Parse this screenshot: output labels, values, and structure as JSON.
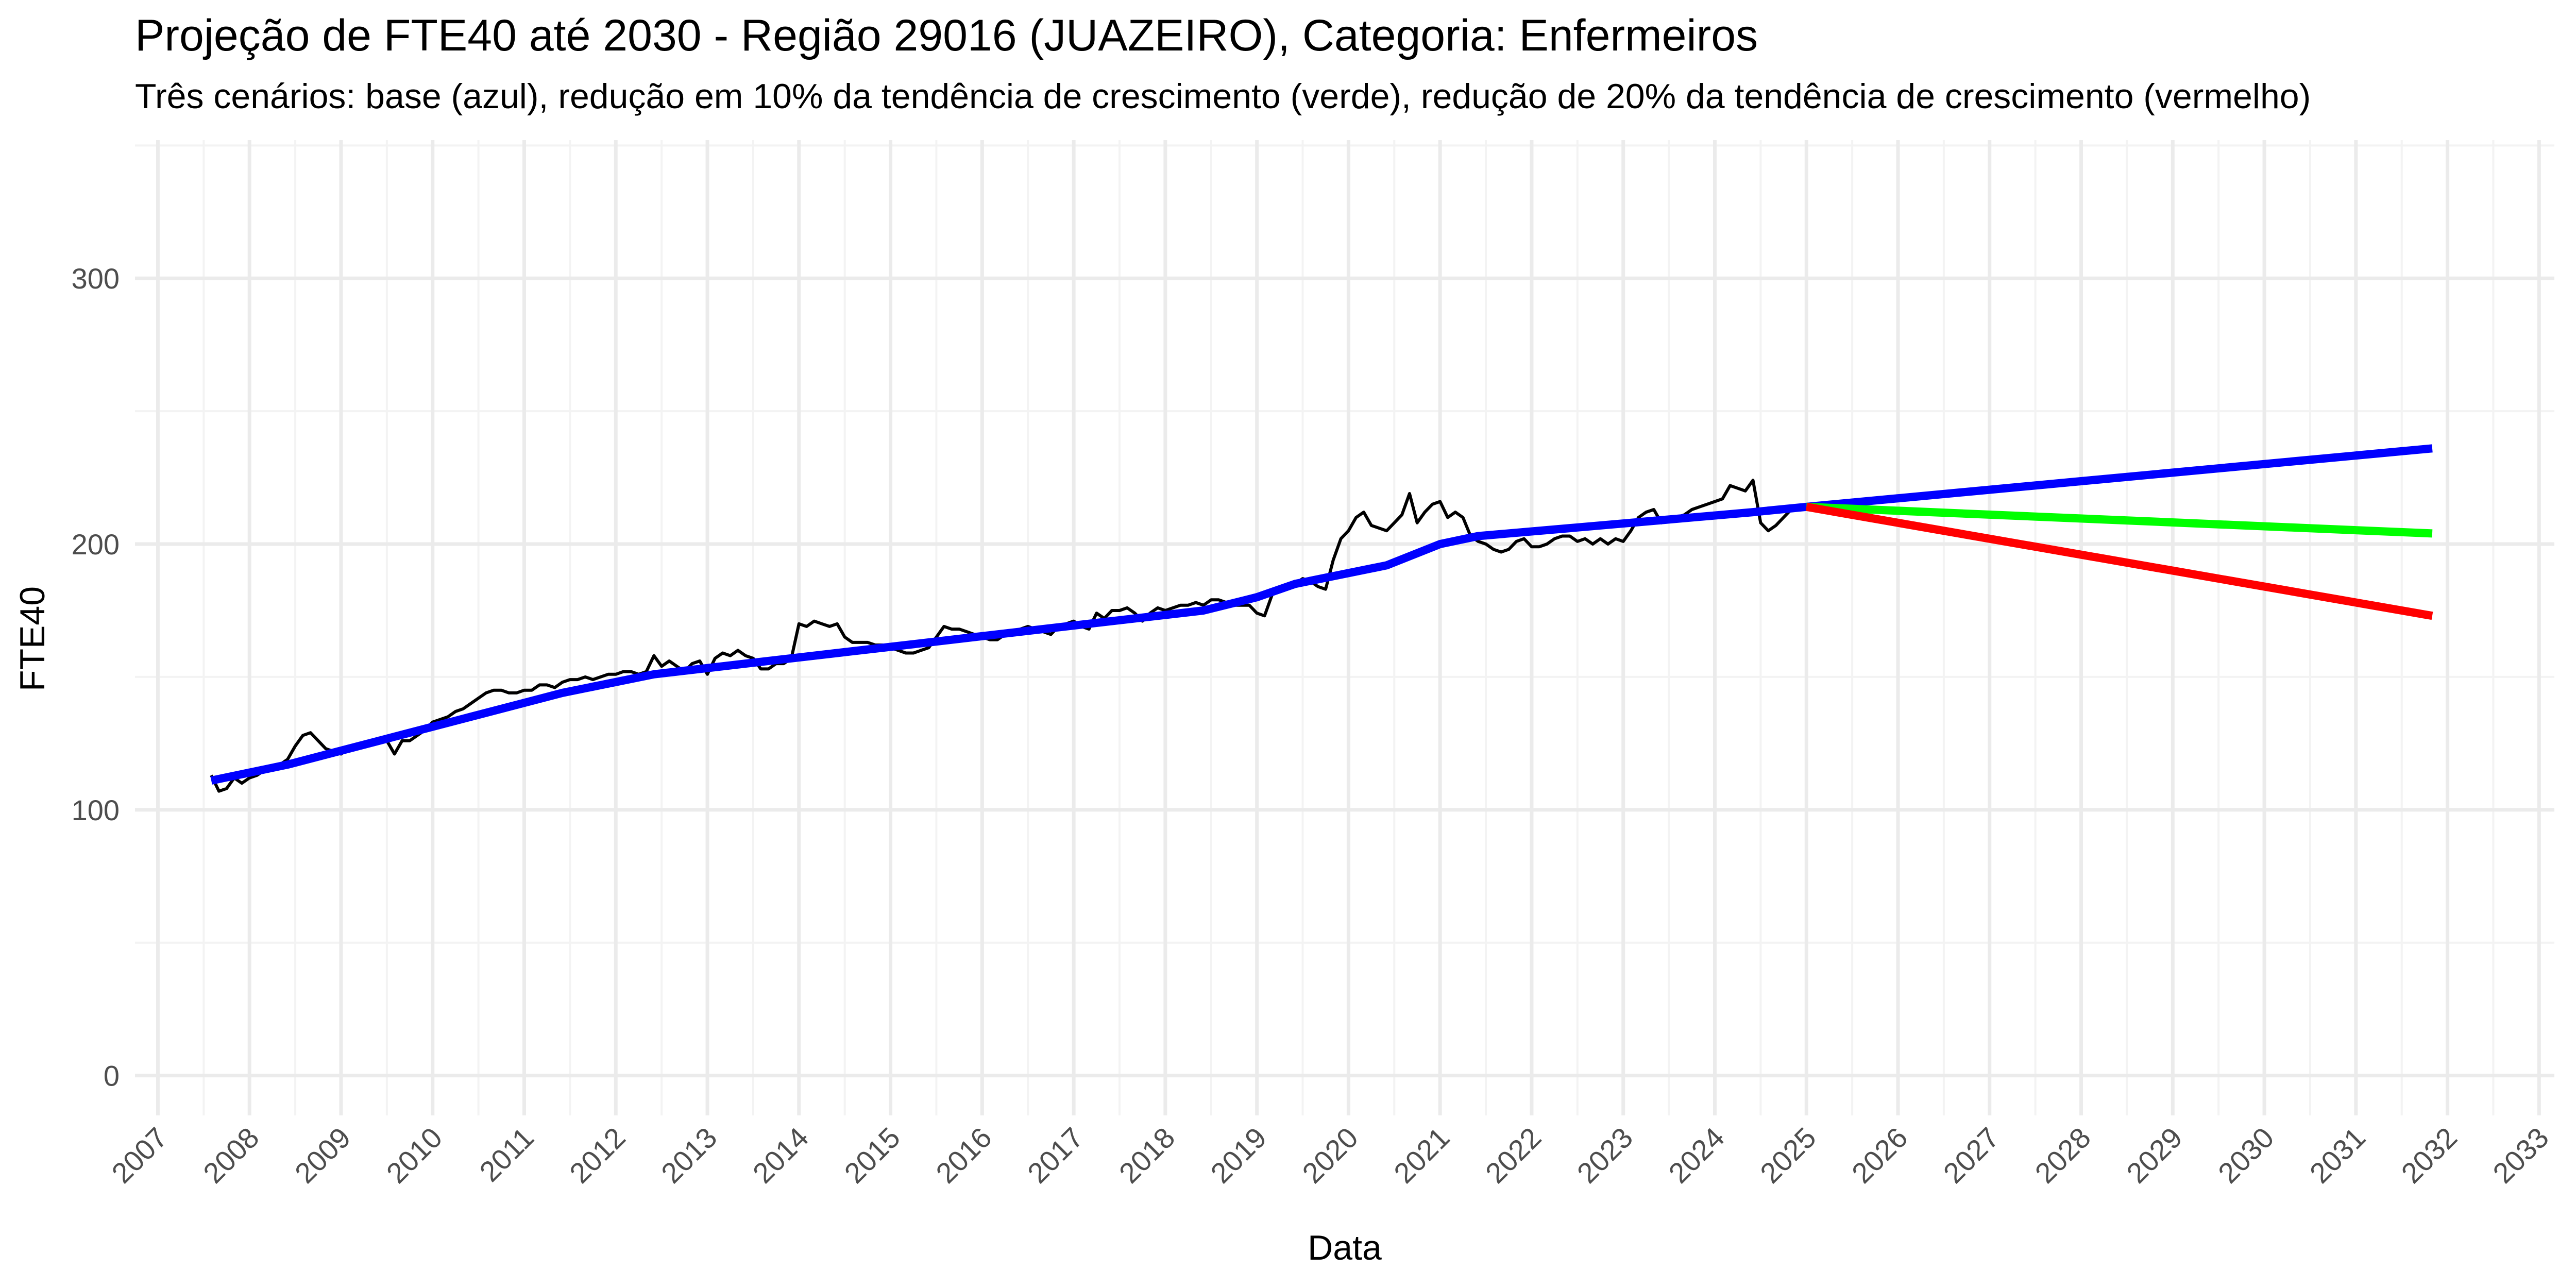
{
  "chart_data": {
    "type": "line",
    "title": "Projeção de FTE40 até 2030 - Região 29016 (JUAZEIRO), Categoria: Enfermeiros",
    "subtitle": "Três cenários: base (azul), redução em 10% da tendência de crescimento (verde), redução de 20% da tendência de crescimento (vermelho)",
    "xlabel": "Data",
    "ylabel": "FTE40",
    "x_ticks": [
      "2007",
      "2008",
      "2009",
      "2010",
      "2011",
      "2012",
      "2013",
      "2014",
      "2015",
      "2016",
      "2017",
      "2018",
      "2019",
      "2020",
      "2021",
      "2022",
      "2023",
      "2024",
      "2025",
      "2026",
      "2027",
      "2028",
      "2029",
      "2030",
      "2031",
      "2032",
      "2033"
    ],
    "y_ticks": [
      "0",
      "100",
      "200",
      "300"
    ],
    "xlim": [
      "2006-10-01",
      "2033-03-01"
    ],
    "ylim": [
      -15,
      352
    ],
    "grid": true,
    "legend": "none",
    "series": [
      {
        "color": "#000000",
        "points": [
          [
            "2007-08-01",
            113
          ],
          [
            "2007-09-01",
            107
          ],
          [
            "2007-10-01",
            108
          ],
          [
            "2007-11-01",
            112
          ],
          [
            "2007-12-01",
            110
          ],
          [
            "2008-01-01",
            112
          ],
          [
            "2008-02-01",
            113
          ],
          [
            "2008-03-01",
            115
          ],
          [
            "2008-04-01",
            116
          ],
          [
            "2008-05-01",
            117
          ],
          [
            "2008-06-01",
            119
          ],
          [
            "2008-07-01",
            124
          ],
          [
            "2008-08-01",
            128
          ],
          [
            "2008-09-01",
            129
          ],
          [
            "2008-10-01",
            126
          ],
          [
            "2008-11-01",
            123
          ],
          [
            "2008-12-01",
            122
          ],
          [
            "2009-01-01",
            121
          ],
          [
            "2009-02-01",
            123
          ],
          [
            "2009-03-01",
            124
          ],
          [
            "2009-04-01",
            125
          ],
          [
            "2009-05-01",
            126
          ],
          [
            "2009-06-01",
            127
          ],
          [
            "2009-07-01",
            126
          ],
          [
            "2009-08-01",
            121
          ],
          [
            "2009-09-01",
            126
          ],
          [
            "2009-10-01",
            126
          ],
          [
            "2009-11-01",
            128
          ],
          [
            "2009-12-01",
            130
          ],
          [
            "2010-01-01",
            133
          ],
          [
            "2010-02-01",
            134
          ],
          [
            "2010-03-01",
            135
          ],
          [
            "2010-04-01",
            137
          ],
          [
            "2010-05-01",
            138
          ],
          [
            "2010-06-01",
            140
          ],
          [
            "2010-07-01",
            142
          ],
          [
            "2010-08-01",
            144
          ],
          [
            "2010-09-01",
            145
          ],
          [
            "2010-10-01",
            145
          ],
          [
            "2010-11-01",
            144
          ],
          [
            "2010-12-01",
            144
          ],
          [
            "2011-01-01",
            145
          ],
          [
            "2011-02-01",
            145
          ],
          [
            "2011-03-01",
            147
          ],
          [
            "2011-04-01",
            147
          ],
          [
            "2011-05-01",
            146
          ],
          [
            "2011-06-01",
            148
          ],
          [
            "2011-07-01",
            149
          ],
          [
            "2011-08-01",
            149
          ],
          [
            "2011-09-01",
            150
          ],
          [
            "2011-10-01",
            149
          ],
          [
            "2011-11-01",
            150
          ],
          [
            "2011-12-01",
            151
          ],
          [
            "2012-01-01",
            151
          ],
          [
            "2012-02-01",
            152
          ],
          [
            "2012-03-01",
            152
          ],
          [
            "2012-04-01",
            151
          ],
          [
            "2012-05-01",
            152
          ],
          [
            "2012-06-01",
            158
          ],
          [
            "2012-07-01",
            154
          ],
          [
            "2012-08-01",
            156
          ],
          [
            "2012-09-01",
            154
          ],
          [
            "2012-10-01",
            152
          ],
          [
            "2012-11-01",
            155
          ],
          [
            "2012-12-01",
            156
          ],
          [
            "2013-01-01",
            151
          ],
          [
            "2013-02-01",
            157
          ],
          [
            "2013-03-01",
            159
          ],
          [
            "2013-04-01",
            158
          ],
          [
            "2013-05-01",
            160
          ],
          [
            "2013-06-01",
            158
          ],
          [
            "2013-07-01",
            157
          ],
          [
            "2013-08-01",
            153
          ],
          [
            "2013-09-01",
            153
          ],
          [
            "2013-10-01",
            155
          ],
          [
            "2013-11-01",
            155
          ],
          [
            "2013-12-01",
            157
          ],
          [
            "2014-01-01",
            170
          ],
          [
            "2014-02-01",
            169
          ],
          [
            "2014-03-01",
            171
          ],
          [
            "2014-04-01",
            170
          ],
          [
            "2014-05-01",
            169
          ],
          [
            "2014-06-01",
            170
          ],
          [
            "2014-07-01",
            165
          ],
          [
            "2014-08-01",
            163
          ],
          [
            "2014-09-01",
            163
          ],
          [
            "2014-10-01",
            163
          ],
          [
            "2014-11-01",
            162
          ],
          [
            "2014-12-01",
            162
          ],
          [
            "2015-01-01",
            161
          ],
          [
            "2015-02-01",
            160
          ],
          [
            "2015-03-01",
            159
          ],
          [
            "2015-04-01",
            159
          ],
          [
            "2015-05-01",
            160
          ],
          [
            "2015-06-01",
            161
          ],
          [
            "2015-07-01",
            165
          ],
          [
            "2015-08-01",
            169
          ],
          [
            "2015-09-01",
            168
          ],
          [
            "2015-10-01",
            168
          ],
          [
            "2015-11-01",
            167
          ],
          [
            "2015-12-01",
            166
          ],
          [
            "2016-01-01",
            165
          ],
          [
            "2016-02-01",
            164
          ],
          [
            "2016-03-01",
            164
          ],
          [
            "2016-04-01",
            166
          ],
          [
            "2016-05-01",
            167
          ],
          [
            "2016-06-01",
            168
          ],
          [
            "2016-07-01",
            169
          ],
          [
            "2016-08-01",
            168
          ],
          [
            "2016-09-01",
            167
          ],
          [
            "2016-10-01",
            166
          ],
          [
            "2016-11-01",
            169
          ],
          [
            "2016-12-01",
            170
          ],
          [
            "2017-01-01",
            171
          ],
          [
            "2017-02-01",
            169
          ],
          [
            "2017-03-01",
            168
          ],
          [
            "2017-04-01",
            174
          ],
          [
            "2017-05-01",
            172
          ],
          [
            "2017-06-01",
            175
          ],
          [
            "2017-07-01",
            175
          ],
          [
            "2017-08-01",
            176
          ],
          [
            "2017-09-01",
            174
          ],
          [
            "2017-10-01",
            171
          ],
          [
            "2017-11-01",
            174
          ],
          [
            "2017-12-01",
            176
          ],
          [
            "2018-01-01",
            175
          ],
          [
            "2018-02-01",
            176
          ],
          [
            "2018-03-01",
            177
          ],
          [
            "2018-04-01",
            177
          ],
          [
            "2018-05-01",
            178
          ],
          [
            "2018-06-01",
            177
          ],
          [
            "2018-07-01",
            179
          ],
          [
            "2018-08-01",
            179
          ],
          [
            "2018-09-01",
            178
          ],
          [
            "2018-10-01",
            177
          ],
          [
            "2018-11-01",
            177
          ],
          [
            "2018-12-01",
            177
          ],
          [
            "2019-01-01",
            174
          ],
          [
            "2019-02-01",
            173
          ],
          [
            "2019-03-01",
            181
          ],
          [
            "2019-04-01",
            184
          ],
          [
            "2019-05-01",
            183
          ],
          [
            "2019-06-01",
            185
          ],
          [
            "2019-07-01",
            187
          ],
          [
            "2019-08-01",
            186
          ],
          [
            "2019-09-01",
            184
          ],
          [
            "2019-10-01",
            183
          ],
          [
            "2019-11-01",
            194
          ],
          [
            "2019-12-01",
            202
          ],
          [
            "2020-01-01",
            205
          ],
          [
            "2020-02-01",
            210
          ],
          [
            "2020-03-01",
            212
          ],
          [
            "2020-04-01",
            207
          ],
          [
            "2020-05-01",
            206
          ],
          [
            "2020-06-01",
            205
          ],
          [
            "2020-07-01",
            208
          ],
          [
            "2020-08-01",
            211
          ],
          [
            "2020-09-01",
            219
          ],
          [
            "2020-10-01",
            208
          ],
          [
            "2020-11-01",
            212
          ],
          [
            "2020-12-01",
            215
          ],
          [
            "2021-01-01",
            216
          ],
          [
            "2021-02-01",
            210
          ],
          [
            "2021-03-01",
            212
          ],
          [
            "2021-04-01",
            210
          ],
          [
            "2021-05-01",
            203
          ],
          [
            "2021-06-01",
            201
          ],
          [
            "2021-07-01",
            200
          ],
          [
            "2021-08-01",
            198
          ],
          [
            "2021-09-01",
            197
          ],
          [
            "2021-10-01",
            198
          ],
          [
            "2021-11-01",
            201
          ],
          [
            "2021-12-01",
            202
          ],
          [
            "2022-01-01",
            199
          ],
          [
            "2022-02-01",
            199
          ],
          [
            "2022-03-01",
            200
          ],
          [
            "2022-04-01",
            202
          ],
          [
            "2022-05-01",
            203
          ],
          [
            "2022-06-01",
            203
          ],
          [
            "2022-07-01",
            201
          ],
          [
            "2022-08-01",
            202
          ],
          [
            "2022-09-01",
            200
          ],
          [
            "2022-10-01",
            202
          ],
          [
            "2022-11-01",
            200
          ],
          [
            "2022-12-01",
            202
          ],
          [
            "2023-01-01",
            201
          ],
          [
            "2023-02-01",
            205
          ],
          [
            "2023-03-01",
            210
          ],
          [
            "2023-04-01",
            212
          ],
          [
            "2023-05-01",
            213
          ],
          [
            "2023-06-01",
            208
          ],
          [
            "2023-07-01",
            210
          ],
          [
            "2023-08-01",
            210
          ],
          [
            "2023-09-01",
            211
          ],
          [
            "2023-10-01",
            213
          ],
          [
            "2023-11-01",
            214
          ],
          [
            "2023-12-01",
            215
          ],
          [
            "2024-01-01",
            216
          ],
          [
            "2024-02-01",
            217
          ],
          [
            "2024-03-01",
            222
          ],
          [
            "2024-04-01",
            221
          ],
          [
            "2024-05-01",
            220
          ],
          [
            "2024-06-01",
            224
          ],
          [
            "2024-07-01",
            208
          ],
          [
            "2024-08-01",
            205
          ],
          [
            "2024-09-01",
            207
          ],
          [
            "2024-10-01",
            210
          ],
          [
            "2024-11-01",
            213
          ]
        ]
      },
      {
        "color": "#0000ff",
        "points": [
          [
            "2007-08-01",
            111
          ],
          [
            "2008-06-01",
            117
          ],
          [
            "2009-06-01",
            126
          ],
          [
            "2010-06-01",
            135
          ],
          [
            "2011-06-01",
            144
          ],
          [
            "2012-06-01",
            151
          ],
          [
            "2013-06-01",
            155
          ],
          [
            "2014-06-01",
            159
          ],
          [
            "2015-06-01",
            163
          ],
          [
            "2016-06-01",
            167
          ],
          [
            "2017-06-01",
            171
          ],
          [
            "2018-06-01",
            175
          ],
          [
            "2019-01-01",
            180
          ],
          [
            "2019-06-01",
            185
          ],
          [
            "2020-06-01",
            192
          ],
          [
            "2021-01-01",
            200
          ],
          [
            "2021-06-01",
            203
          ],
          [
            "2022-06-01",
            206
          ],
          [
            "2023-06-01",
            209
          ],
          [
            "2024-06-01",
            212
          ],
          [
            "2025-01-01",
            214
          ],
          [
            "2031-11-01",
            236
          ]
        ]
      },
      {
        "color": "#00ff00",
        "points": [
          [
            "2025-01-01",
            214
          ],
          [
            "2031-11-01",
            204
          ]
        ]
      },
      {
        "color": "#ff0000",
        "points": [
          [
            "2025-01-01",
            214
          ],
          [
            "2031-11-01",
            173
          ]
        ]
      }
    ]
  }
}
